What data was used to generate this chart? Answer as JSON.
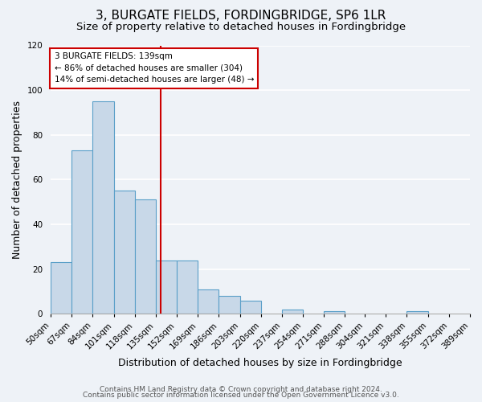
{
  "title": "3, BURGATE FIELDS, FORDINGBRIDGE, SP6 1LR",
  "subtitle": "Size of property relative to detached houses in Fordingbridge",
  "xlabel": "Distribution of detached houses by size in Fordingbridge",
  "ylabel": "Number of detached properties",
  "bar_edges": [
    50,
    67,
    84,
    101,
    118,
    135,
    152,
    169,
    186,
    203,
    220,
    237,
    254,
    271,
    288,
    304,
    321,
    338,
    355,
    372,
    389
  ],
  "bar_heights": [
    23,
    73,
    95,
    55,
    51,
    24,
    24,
    11,
    8,
    6,
    0,
    2,
    0,
    1,
    0,
    0,
    0,
    1,
    0,
    0
  ],
  "bar_color": "#c8d8e8",
  "bar_edge_color": "#5a9fc8",
  "vline_x": 139,
  "vline_color": "#cc0000",
  "annotation_line1": "3 BURGATE FIELDS: 139sqm",
  "annotation_line2": "← 86% of detached houses are smaller (304)",
  "annotation_line3": "14% of semi-detached houses are larger (48) →",
  "annotation_box_color": "#ffffff",
  "annotation_box_edge_color": "#cc0000",
  "ylim": [
    0,
    120
  ],
  "yticks": [
    0,
    20,
    40,
    60,
    80,
    100,
    120
  ],
  "tick_labels": [
    "50sqm",
    "67sqm",
    "84sqm",
    "101sqm",
    "118sqm",
    "135sqm",
    "152sqm",
    "169sqm",
    "186sqm",
    "203sqm",
    "220sqm",
    "237sqm",
    "254sqm",
    "271sqm",
    "288sqm",
    "304sqm",
    "321sqm",
    "338sqm",
    "355sqm",
    "372sqm",
    "389sqm"
  ],
  "footer1": "Contains HM Land Registry data © Crown copyright and database right 2024.",
  "footer2": "Contains public sector information licensed under the Open Government Licence v3.0.",
  "bg_color": "#eef2f7",
  "grid_color": "#ffffff",
  "title_fontsize": 11,
  "subtitle_fontsize": 9.5,
  "label_fontsize": 9,
  "tick_fontsize": 7.5,
  "footer_fontsize": 6.5
}
